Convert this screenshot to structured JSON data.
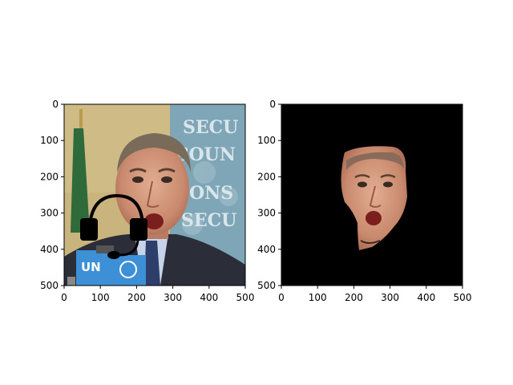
{
  "chart_data": [
    {
      "type": "image",
      "subject": "photo-with-headset",
      "xlim": [
        0,
        500
      ],
      "ylim": [
        500,
        0
      ],
      "xticks": [
        0,
        100,
        200,
        300,
        400,
        500
      ],
      "yticks": [
        0,
        100,
        200,
        300,
        400,
        500
      ],
      "xtick_labels": [
        "0",
        "100",
        "200",
        "300",
        "400",
        "500"
      ],
      "ytick_labels": [
        "0",
        "100",
        "200",
        "300",
        "400",
        "500"
      ],
      "background_text": [
        "SECU",
        "COUN",
        "ONS",
        "SECU"
      ],
      "mic_labels": [
        "UN",
        "UN"
      ]
    },
    {
      "type": "image",
      "subject": "segmented-face-mask",
      "xlim": [
        0,
        500
      ],
      "ylim": [
        500,
        0
      ],
      "xticks": [
        0,
        100,
        200,
        300,
        400,
        500
      ],
      "yticks": [
        0,
        100,
        200,
        300,
        400,
        500
      ],
      "xtick_labels": [
        "0",
        "100",
        "200",
        "300",
        "400",
        "500"
      ],
      "ytick_labels": [
        "0",
        "100",
        "200",
        "300",
        "400",
        "500"
      ]
    }
  ],
  "colors": {
    "wall": "#c9b47d",
    "curtain": "#7fa6b6",
    "flag_green": "#2f6b3a",
    "suit": "#2b2e38",
    "skin": "#d49a7f",
    "hair": "#7a6a5a",
    "un_blue": "#3d8fd6",
    "headset": "#000000",
    "mask_bg": "#000000"
  }
}
